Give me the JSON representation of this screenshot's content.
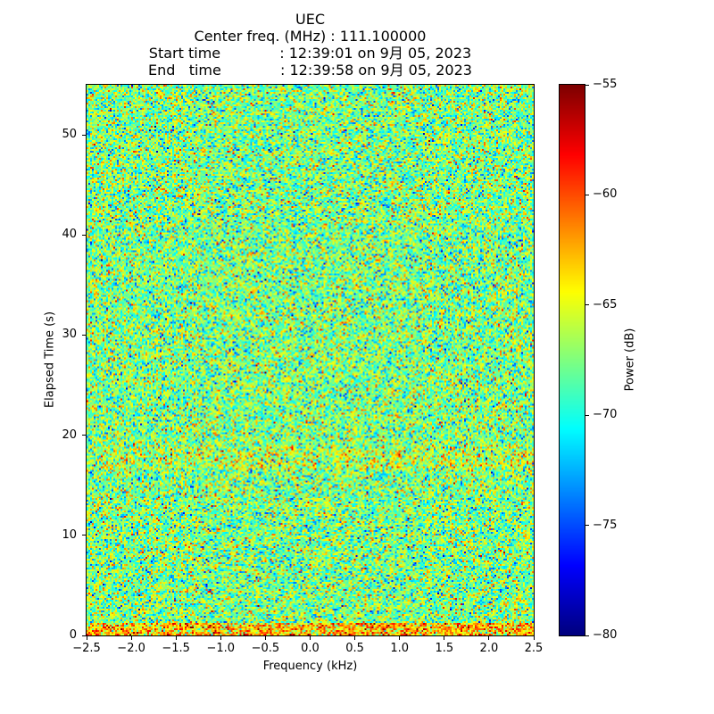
{
  "figure": {
    "title": "UEC",
    "info_lines": [
      "Center freq. (MHz) : 111.100000",
      "Start time             : 12:39:01 on 9月 05, 2023",
      "End   time             : 12:39:58 on 9月 05, 2023"
    ]
  },
  "chart_data": {
    "type": "heatmap",
    "title": "UEC",
    "subtitle_center_freq_mhz": "111.100000",
    "start_time": "12:39:01 on 9月 05, 2023",
    "end_time": "12:39:58 on 9月 05, 2023",
    "xlabel": "Frequency (kHz)",
    "ylabel": "Elapsed Time (s)",
    "xlim": [
      -2.5,
      2.5
    ],
    "ylim": [
      0,
      55
    ],
    "xticks": [
      -2.5,
      -2.0,
      -1.5,
      -1.0,
      -0.5,
      0.0,
      0.5,
      1.0,
      1.5,
      2.0,
      2.5
    ],
    "xtick_labels": [
      "−2.5",
      "−2.0",
      "−1.5",
      "−1.0",
      "−0.5",
      "0.0",
      "0.5",
      "1.0",
      "1.5",
      "2.0",
      "2.5"
    ],
    "yticks": [
      0,
      10,
      20,
      30,
      40,
      50
    ],
    "ytick_labels": [
      "0",
      "10",
      "20",
      "30",
      "40",
      "50"
    ],
    "grid": false,
    "legend": false,
    "colorbar": {
      "label": "Power (dB)",
      "range_db": [
        -80,
        -55
      ],
      "ticks": [
        -55,
        -60,
        -65,
        -70,
        -75,
        -80
      ],
      "tick_labels": [
        "−55",
        "−60",
        "−65",
        "−70",
        "−75",
        "−80"
      ],
      "colormap": "jet",
      "position": "right"
    },
    "noise": {
      "distribution": "gaussian",
      "mean_db": -67.5,
      "std_db": 3.2,
      "seed": 20230905,
      "cols": 251,
      "rows": 309
    },
    "features": [
      {
        "type": "warm-band",
        "t_range": [
          0,
          1.2
        ],
        "boost_db": 4.5
      },
      {
        "type": "warm-band",
        "t_range": [
          16.5,
          19.0
        ],
        "boost_db": 1.2
      }
    ]
  }
}
